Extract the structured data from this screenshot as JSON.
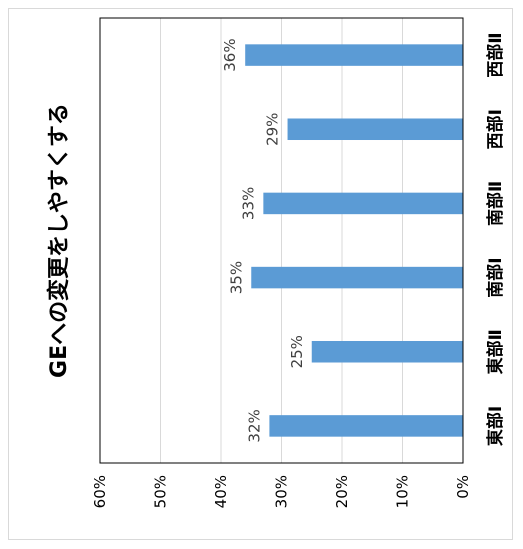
{
  "chart_data": {
    "type": "bar",
    "orientation": "horizontal",
    "rotated": "90deg",
    "title": "GEへの変更をしやすくする",
    "categories": [
      "東部Ⅰ",
      "東部Ⅱ",
      "南部Ⅰ",
      "南部Ⅱ",
      "西部Ⅰ",
      "西部Ⅱ"
    ],
    "values": [
      0.32,
      0.25,
      0.35,
      0.33,
      0.29,
      0.36
    ],
    "value_labels": [
      "32%",
      "25%",
      "35%",
      "33%",
      "29%",
      "36%"
    ],
    "ticks": [
      "0%",
      "10%",
      "20%",
      "30%",
      "40%",
      "50%",
      "60%"
    ],
    "xlim": [
      0,
      0.6
    ],
    "grid": true,
    "bar_color": "#5b9bd5"
  }
}
